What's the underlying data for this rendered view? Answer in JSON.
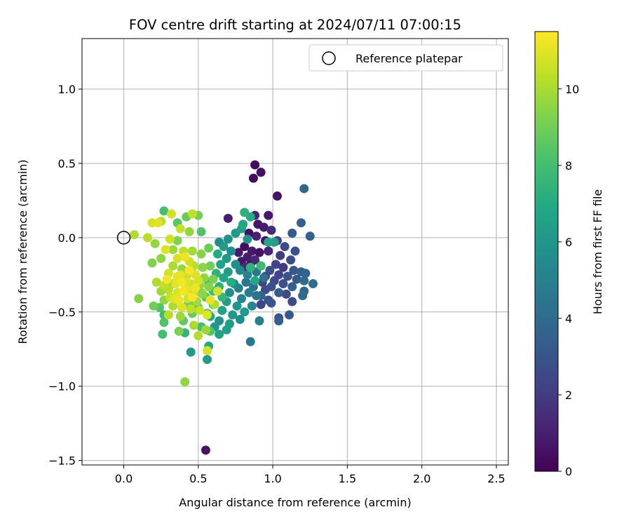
{
  "chart_data": {
    "type": "scatter",
    "title": "FOV centre drift starting at 2024/07/11 07:00:15",
    "xlabel": "Angular distance from reference (arcmin)",
    "ylabel": "Rotation from reference (arcmin)",
    "xlim": [
      -0.28,
      2.58
    ],
    "ylim": [
      -1.53,
      1.34
    ],
    "x_ticks": [
      0.0,
      0.5,
      1.0,
      1.5,
      2.0,
      2.5
    ],
    "x_tick_labels": [
      "0.0",
      "0.5",
      "1.0",
      "1.5",
      "2.0",
      "2.5"
    ],
    "y_ticks": [
      -1.5,
      -1.0,
      -0.5,
      0.0,
      0.5,
      1.0
    ],
    "y_tick_labels": [
      "−1.5",
      "−1.0",
      "−0.5",
      "0.0",
      "0.5",
      "1.0"
    ],
    "grid": true,
    "legend": {
      "placement": "top-right",
      "entries": [
        {
          "label": "Reference platepar",
          "marker": "open-circle"
        }
      ]
    },
    "reference_point": {
      "x": 0.0,
      "y": 0.0
    },
    "colorbar": {
      "label": "Hours from first FF file",
      "colormap": "viridis",
      "range": [
        0,
        11.5
      ],
      "ticks": [
        0,
        2,
        4,
        6,
        8,
        10
      ],
      "tick_labels": [
        "0",
        "2",
        "4",
        "6",
        "8",
        "10"
      ]
    },
    "points": [
      {
        "x": 0.88,
        "y": 0.49,
        "c": 0.3
      },
      {
        "x": 0.92,
        "y": 0.44,
        "c": 0.5
      },
      {
        "x": 0.87,
        "y": 0.4,
        "c": 0.4
      },
      {
        "x": 1.03,
        "y": 0.28,
        "c": 0.6
      },
      {
        "x": 0.55,
        "y": -1.43,
        "c": 0.6
      },
      {
        "x": 0.85,
        "y": -0.7,
        "c": 4.6
      },
      {
        "x": 0.7,
        "y": 0.13,
        "c": 1.0
      },
      {
        "x": 0.88,
        "y": 0.15,
        "c": 1.2
      },
      {
        "x": 0.97,
        "y": 0.15,
        "c": 0.8
      },
      {
        "x": 0.9,
        "y": 0.09,
        "c": 0.7
      },
      {
        "x": 0.94,
        "y": 0.07,
        "c": 0.9
      },
      {
        "x": 0.84,
        "y": 0.03,
        "c": 0.5
      },
      {
        "x": 0.89,
        "y": 0.01,
        "c": 1.1
      },
      {
        "x": 0.95,
        "y": -0.02,
        "c": 0.6
      },
      {
        "x": 0.81,
        "y": -0.06,
        "c": 0.4
      },
      {
        "x": 0.86,
        "y": -0.09,
        "c": 0.8
      },
      {
        "x": 0.91,
        "y": -0.1,
        "c": 0.5
      },
      {
        "x": 0.83,
        "y": -0.13,
        "c": 0.9
      },
      {
        "x": 0.88,
        "y": -0.15,
        "c": 1.3
      },
      {
        "x": 0.79,
        "y": -0.16,
        "c": 0.7
      },
      {
        "x": 0.85,
        "y": -0.18,
        "c": 0.6
      },
      {
        "x": 0.92,
        "y": -0.19,
        "c": 1.0
      },
      {
        "x": 0.81,
        "y": -0.2,
        "c": 1.5
      },
      {
        "x": 0.97,
        "y": -0.09,
        "c": 1.2
      },
      {
        "x": 0.99,
        "y": 0.05,
        "c": 1.4
      },
      {
        "x": 0.77,
        "y": -0.1,
        "c": 0.9
      },
      {
        "x": 1.19,
        "y": 0.1,
        "c": 3.5
      },
      {
        "x": 1.21,
        "y": 0.33,
        "c": 3.8
      },
      {
        "x": 1.13,
        "y": 0.03,
        "c": 3.3
      },
      {
        "x": 1.25,
        "y": 0.01,
        "c": 3.6
      },
      {
        "x": 1.03,
        "y": -0.02,
        "c": 2.2
      },
      {
        "x": 1.08,
        "y": -0.06,
        "c": 2.5
      },
      {
        "x": 1.15,
        "y": -0.09,
        "c": 3.0
      },
      {
        "x": 1.05,
        "y": -0.12,
        "c": 2.0
      },
      {
        "x": 1.12,
        "y": -0.15,
        "c": 2.7
      },
      {
        "x": 1.02,
        "y": -0.18,
        "c": 2.3
      },
      {
        "x": 1.07,
        "y": -0.2,
        "c": 1.9
      },
      {
        "x": 0.98,
        "y": -0.22,
        "c": 2.8
      },
      {
        "x": 1.14,
        "y": -0.22,
        "c": 3.1
      },
      {
        "x": 1.19,
        "y": -0.23,
        "c": 3.4
      },
      {
        "x": 1.22,
        "y": -0.24,
        "c": 3.7
      },
      {
        "x": 1.04,
        "y": -0.25,
        "c": 2.4
      },
      {
        "x": 1.1,
        "y": -0.26,
        "c": 2.9
      },
      {
        "x": 0.95,
        "y": -0.26,
        "c": 2.1
      },
      {
        "x": 1.16,
        "y": -0.28,
        "c": 3.2
      },
      {
        "x": 1.21,
        "y": -0.29,
        "c": 3.9
      },
      {
        "x": 1.01,
        "y": -0.29,
        "c": 2.6
      },
      {
        "x": 0.93,
        "y": -0.3,
        "c": 2.2
      },
      {
        "x": 1.07,
        "y": -0.31,
        "c": 2.8
      },
      {
        "x": 1.27,
        "y": -0.31,
        "c": 4.1
      },
      {
        "x": 0.99,
        "y": -0.33,
        "c": 3.0
      },
      {
        "x": 1.13,
        "y": -0.33,
        "c": 3.5
      },
      {
        "x": 0.95,
        "y": -0.35,
        "c": 2.7
      },
      {
        "x": 1.21,
        "y": -0.36,
        "c": 3.8
      },
      {
        "x": 1.04,
        "y": -0.37,
        "c": 3.3
      },
      {
        "x": 1.09,
        "y": -0.38,
        "c": 2.5
      },
      {
        "x": 0.92,
        "y": -0.39,
        "c": 3.6
      },
      {
        "x": 1.2,
        "y": -0.39,
        "c": 4.0
      },
      {
        "x": 0.97,
        "y": -0.42,
        "c": 2.9
      },
      {
        "x": 1.13,
        "y": -0.43,
        "c": 2.6
      },
      {
        "x": 0.92,
        "y": -0.45,
        "c": 2.3
      },
      {
        "x": 0.99,
        "y": -0.44,
        "c": 3.1
      },
      {
        "x": 1.04,
        "y": -0.54,
        "c": 2.8
      },
      {
        "x": 1.11,
        "y": -0.52,
        "c": 3.2
      },
      {
        "x": 1.04,
        "y": -0.56,
        "c": 3.4
      },
      {
        "x": 0.91,
        "y": -0.56,
        "c": 4.9
      },
      {
        "x": 0.82,
        "y": -0.3,
        "c": 4.5
      },
      {
        "x": 0.87,
        "y": -0.33,
        "c": 4.2
      },
      {
        "x": 0.77,
        "y": -0.34,
        "c": 5.0
      },
      {
        "x": 0.84,
        "y": -0.37,
        "c": 4.8
      },
      {
        "x": 0.74,
        "y": -0.31,
        "c": 5.4
      },
      {
        "x": 0.79,
        "y": -0.41,
        "c": 5.2
      },
      {
        "x": 0.89,
        "y": -0.39,
        "c": 4.4
      },
      {
        "x": 0.71,
        "y": -0.37,
        "c": 5.6
      },
      {
        "x": 0.76,
        "y": -0.46,
        "c": 5.9
      },
      {
        "x": 0.81,
        "y": -0.5,
        "c": 6.2
      },
      {
        "x": 0.86,
        "y": -0.46,
        "c": 5.3
      },
      {
        "x": 0.69,
        "y": -0.43,
        "c": 6.4
      },
      {
        "x": 0.73,
        "y": -0.52,
        "c": 6.1
      },
      {
        "x": 0.78,
        "y": -0.55,
        "c": 5.7
      },
      {
        "x": 0.66,
        "y": -0.49,
        "c": 6.6
      },
      {
        "x": 0.71,
        "y": -0.58,
        "c": 6.3
      },
      {
        "x": 0.64,
        "y": -0.56,
        "c": 5.8
      },
      {
        "x": 0.69,
        "y": -0.62,
        "c": 6.5
      },
      {
        "x": 0.61,
        "y": -0.6,
        "c": 6.0
      },
      {
        "x": 0.64,
        "y": -0.65,
        "c": 6.7
      },
      {
        "x": 0.57,
        "y": -0.73,
        "c": 6.9
      },
      {
        "x": 0.56,
        "y": -0.82,
        "c": 6.4
      },
      {
        "x": 0.45,
        "y": -0.77,
        "c": 6.2
      },
      {
        "x": 0.58,
        "y": -0.53,
        "c": 6.8
      },
      {
        "x": 0.64,
        "y": -0.03,
        "c": 5.5
      },
      {
        "x": 0.7,
        "y": -0.01,
        "c": 5.8
      },
      {
        "x": 0.75,
        "y": 0.03,
        "c": 6.1
      },
      {
        "x": 0.79,
        "y": 0.06,
        "c": 6.5
      },
      {
        "x": 0.81,
        "y": 0.17,
        "c": 7.3
      },
      {
        "x": 0.85,
        "y": 0.14,
        "c": 7.0
      },
      {
        "x": 0.8,
        "y": 0.09,
        "c": 6.8
      },
      {
        "x": 0.83,
        "y": -0.01,
        "c": 5.9
      },
      {
        "x": 0.67,
        "y": -0.06,
        "c": 6.2
      },
      {
        "x": 0.72,
        "y": -0.09,
        "c": 5.6
      },
      {
        "x": 0.69,
        "y": -0.14,
        "c": 6.0
      },
      {
        "x": 0.75,
        "y": -0.18,
        "c": 5.7
      },
      {
        "x": 0.65,
        "y": -0.18,
        "c": 6.6
      },
      {
        "x": 0.63,
        "y": -0.11,
        "c": 7.0
      },
      {
        "x": 0.7,
        "y": -0.23,
        "c": 6.3
      },
      {
        "x": 0.78,
        "y": -0.22,
        "c": 5.4
      },
      {
        "x": 0.83,
        "y": -0.25,
        "c": 5.1
      },
      {
        "x": 0.89,
        "y": -0.23,
        "c": 4.6
      },
      {
        "x": 0.94,
        "y": -0.27,
        "c": 4.3
      },
      {
        "x": 0.85,
        "y": -0.2,
        "c": 7.4
      },
      {
        "x": 0.88,
        "y": -0.29,
        "c": 6.9
      },
      {
        "x": 0.92,
        "y": -0.19,
        "c": 7.8
      },
      {
        "x": 0.97,
        "y": -0.03,
        "c": 6.7
      },
      {
        "x": 1.01,
        "y": -0.03,
        "c": 6.4
      },
      {
        "x": 0.67,
        "y": -0.27,
        "c": 6.8
      },
      {
        "x": 0.72,
        "y": -0.3,
        "c": 7.1
      },
      {
        "x": 0.62,
        "y": -0.24,
        "c": 7.4
      },
      {
        "x": 0.57,
        "y": -0.3,
        "c": 7.7
      },
      {
        "x": 0.6,
        "y": -0.36,
        "c": 7.9
      },
      {
        "x": 0.64,
        "y": -0.33,
        "c": 7.3
      },
      {
        "x": 0.55,
        "y": -0.4,
        "c": 8.1
      },
      {
        "x": 0.6,
        "y": -0.45,
        "c": 8.3
      },
      {
        "x": 0.66,
        "y": -0.4,
        "c": 7.6
      },
      {
        "x": 0.5,
        "y": -0.47,
        "c": 8.5
      },
      {
        "x": 0.52,
        "y": -0.37,
        "c": 8.7
      },
      {
        "x": 0.47,
        "y": -0.43,
        "c": 8.9
      },
      {
        "x": 0.56,
        "y": -0.51,
        "c": 8.2
      },
      {
        "x": 0.46,
        "y": -0.51,
        "c": 8.8
      },
      {
        "x": 0.43,
        "y": -0.45,
        "c": 9.1
      },
      {
        "x": 0.4,
        "y": -0.56,
        "c": 8.6
      },
      {
        "x": 0.37,
        "y": -0.63,
        "c": 9.2
      },
      {
        "x": 0.41,
        "y": -0.64,
        "c": 7.5
      },
      {
        "x": 0.52,
        "y": -0.6,
        "c": 8.0
      },
      {
        "x": 0.58,
        "y": -0.63,
        "c": 8.4
      },
      {
        "x": 0.27,
        "y": -0.57,
        "c": 8.3
      },
      {
        "x": 0.27,
        "y": -0.52,
        "c": 7.8
      },
      {
        "x": 0.26,
        "y": -0.65,
        "c": 8.0
      },
      {
        "x": 0.24,
        "y": -0.47,
        "c": 8.4
      },
      {
        "x": 0.2,
        "y": -0.46,
        "c": 9.0
      },
      {
        "x": 0.41,
        "y": -0.97,
        "c": 9.6
      },
      {
        "x": 0.47,
        "y": -0.59,
        "c": 10.0
      },
      {
        "x": 0.5,
        "y": -0.66,
        "c": 10.2
      },
      {
        "x": 0.56,
        "y": -0.76,
        "c": 10.7
      },
      {
        "x": 0.55,
        "y": -0.62,
        "c": 9.8
      },
      {
        "x": 0.27,
        "y": 0.18,
        "c": 8.1
      },
      {
        "x": 0.36,
        "y": 0.1,
        "c": 8.5
      },
      {
        "x": 0.42,
        "y": 0.14,
        "c": 8.8
      },
      {
        "x": 0.5,
        "y": 0.15,
        "c": 9.1
      },
      {
        "x": 0.46,
        "y": 0.16,
        "c": 10.4
      },
      {
        "x": 0.32,
        "y": 0.16,
        "c": 10.7
      },
      {
        "x": 0.25,
        "y": 0.11,
        "c": 10.2
      },
      {
        "x": 0.19,
        "y": 0.1,
        "c": 10.8
      },
      {
        "x": 0.23,
        "y": 0.1,
        "c": 11.0
      },
      {
        "x": 0.38,
        "y": 0.06,
        "c": 10.5
      },
      {
        "x": 0.52,
        "y": 0.04,
        "c": 8.3
      },
      {
        "x": 0.44,
        "y": 0.04,
        "c": 9.6
      },
      {
        "x": 0.31,
        "y": -0.01,
        "c": 10.6
      },
      {
        "x": 0.36,
        "y": -0.02,
        "c": 9.3
      },
      {
        "x": 0.16,
        "y": 0.0,
        "c": 10.3
      },
      {
        "x": 0.07,
        "y": 0.02,
        "c": 10.1
      },
      {
        "x": 0.21,
        "y": -0.04,
        "c": 9.7
      },
      {
        "x": 0.28,
        "y": -0.08,
        "c": 10.9
      },
      {
        "x": 0.33,
        "y": -0.08,
        "c": 9.8
      },
      {
        "x": 0.4,
        "y": -0.09,
        "c": 10.4
      },
      {
        "x": 0.46,
        "y": -0.09,
        "c": 9.9
      },
      {
        "x": 0.52,
        "y": -0.11,
        "c": 9.4
      },
      {
        "x": 0.57,
        "y": -0.07,
        "c": 8.9
      },
      {
        "x": 0.41,
        "y": -0.13,
        "c": 11.2
      },
      {
        "x": 0.36,
        "y": -0.14,
        "c": 10.8
      },
      {
        "x": 0.44,
        "y": -0.16,
        "c": 10.6
      },
      {
        "x": 0.25,
        "y": -0.14,
        "c": 9.5
      },
      {
        "x": 0.19,
        "y": -0.17,
        "c": 9.3
      },
      {
        "x": 0.33,
        "y": -0.19,
        "c": 10.0
      },
      {
        "x": 0.39,
        "y": -0.21,
        "c": 9.7
      },
      {
        "x": 0.47,
        "y": -0.19,
        "c": 10.3
      },
      {
        "x": 0.53,
        "y": -0.2,
        "c": 9.5
      },
      {
        "x": 0.58,
        "y": -0.19,
        "c": 9.0
      },
      {
        "x": 0.3,
        "y": -0.24,
        "c": 10.7
      },
      {
        "x": 0.36,
        "y": -0.26,
        "c": 11.1
      },
      {
        "x": 0.42,
        "y": -0.26,
        "c": 10.5
      },
      {
        "x": 0.48,
        "y": -0.25,
        "c": 10.9
      },
      {
        "x": 0.54,
        "y": -0.27,
        "c": 9.6
      },
      {
        "x": 0.6,
        "y": -0.28,
        "c": 9.2
      },
      {
        "x": 0.22,
        "y": -0.3,
        "c": 10.1
      },
      {
        "x": 0.27,
        "y": -0.32,
        "c": 10.4
      },
      {
        "x": 0.33,
        "y": -0.31,
        "c": 9.9
      },
      {
        "x": 0.39,
        "y": -0.3,
        "c": 11.3
      },
      {
        "x": 0.45,
        "y": -0.31,
        "c": 10.6
      },
      {
        "x": 0.51,
        "y": -0.32,
        "c": 9.7
      },
      {
        "x": 0.57,
        "y": -0.33,
        "c": 9.4
      },
      {
        "x": 0.25,
        "y": -0.36,
        "c": 9.8
      },
      {
        "x": 0.3,
        "y": -0.35,
        "c": 10.2
      },
      {
        "x": 0.36,
        "y": -0.37,
        "c": 10.8
      },
      {
        "x": 0.42,
        "y": -0.35,
        "c": 11.0
      },
      {
        "x": 0.47,
        "y": -0.37,
        "c": 10.3
      },
      {
        "x": 0.53,
        "y": -0.38,
        "c": 9.5
      },
      {
        "x": 0.31,
        "y": -0.4,
        "c": 10.5
      },
      {
        "x": 0.37,
        "y": -0.42,
        "c": 11.2
      },
      {
        "x": 0.43,
        "y": -0.41,
        "c": 10.7
      },
      {
        "x": 0.49,
        "y": -0.43,
        "c": 9.9
      },
      {
        "x": 0.27,
        "y": -0.42,
        "c": 9.6
      },
      {
        "x": 0.33,
        "y": -0.46,
        "c": 10.1
      },
      {
        "x": 0.39,
        "y": -0.47,
        "c": 10.9
      },
      {
        "x": 0.45,
        "y": -0.48,
        "c": 10.4
      },
      {
        "x": 0.51,
        "y": -0.49,
        "c": 10.6
      },
      {
        "x": 0.56,
        "y": -0.52,
        "c": 11.0
      },
      {
        "x": 0.38,
        "y": -0.53,
        "c": 9.8
      },
      {
        "x": 0.3,
        "y": -0.52,
        "c": 10.3
      },
      {
        "x": 0.1,
        "y": -0.41,
        "c": 9.4
      },
      {
        "x": 0.61,
        "y": -0.45,
        "c": 10.1
      },
      {
        "x": 0.63,
        "y": -0.36,
        "c": 10.8
      },
      {
        "x": 0.58,
        "y": -0.42,
        "c": 11.1
      },
      {
        "x": 0.44,
        "y": -0.22,
        "c": 11.4
      },
      {
        "x": 0.4,
        "y": -0.36,
        "c": 11.3
      },
      {
        "x": 0.35,
        "y": -0.31,
        "c": 11.1
      },
      {
        "x": 0.48,
        "y": -0.34,
        "c": 11.2
      },
      {
        "x": 0.42,
        "y": -0.3,
        "c": 10.9
      },
      {
        "x": 0.46,
        "y": -0.4,
        "c": 11.4
      },
      {
        "x": 0.34,
        "y": -0.41,
        "c": 11.0
      },
      {
        "x": 0.29,
        "y": -0.28,
        "c": 11.3
      },
      {
        "x": 0.38,
        "y": -0.25,
        "c": 11.0
      },
      {
        "x": 0.5,
        "y": -0.29,
        "c": 10.8
      }
    ]
  }
}
